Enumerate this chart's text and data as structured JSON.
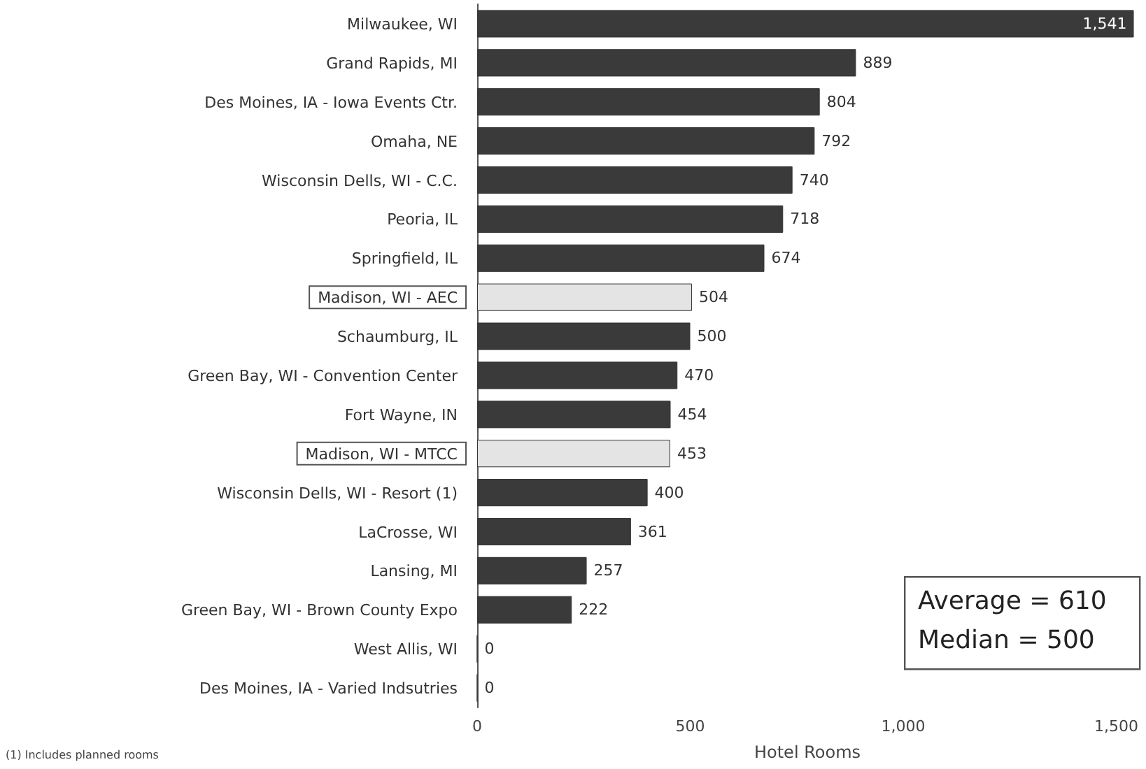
{
  "chart_data": {
    "type": "bar",
    "orientation": "horizontal",
    "xlabel": "Hotel Rooms",
    "categories": [
      "Milwaukee, WI",
      "Grand Rapids, MI",
      "Des Moines, IA - Iowa Events Ctr.",
      "Omaha, NE",
      "Wisconsin Dells, WI - C.C.",
      "Peoria, IL",
      "Springfield, IL",
      "Madison, WI - AEC",
      "Schaumburg, IL",
      "Green Bay, WI - Convention Center",
      "Fort Wayne, IN",
      "Madison, WI - MTCC",
      "Wisconsin Dells, WI - Resort (1)",
      "LaCrosse, WI",
      "Lansing, MI",
      "Green Bay, WI - Brown County Expo",
      "West Allis, WI",
      "Des Moines, IA - Varied Indsutries"
    ],
    "values": [
      1541,
      889,
      804,
      792,
      740,
      718,
      674,
      504,
      500,
      470,
      454,
      453,
      400,
      361,
      257,
      222,
      0,
      0
    ],
    "value_labels": [
      "1,541",
      "889",
      "804",
      "792",
      "740",
      "718",
      "674",
      "504",
      "500",
      "470",
      "454",
      "453",
      "400",
      "361",
      "257",
      "222",
      "0",
      "0"
    ],
    "color": "#3a3a3a",
    "colors": [
      "#3a3a3a",
      "#3a3a3a",
      "#3a3a3a",
      "#3a3a3a",
      "#3a3a3a",
      "#3a3a3a",
      "#3a3a3a",
      "#e4e4e4",
      "#3a3a3a",
      "#3a3a3a",
      "#3a3a3a",
      "#e4e4e4",
      "#3a3a3a",
      "#3a3a3a",
      "#3a3a3a",
      "#3a3a3a",
      "#3a3a3a",
      "#3a3a3a"
    ],
    "xlim": [
      0,
      1550
    ],
    "xticks": [
      0,
      500,
      {
        "value": 1000,
        "label": "1,000"
      },
      {
        "value": 1500,
        "label": "1,500"
      }
    ],
    "grid": false,
    "annotations": [
      "Average = 610",
      "Median = 500",
      "(1) Includes planned rooms"
    ]
  }
}
